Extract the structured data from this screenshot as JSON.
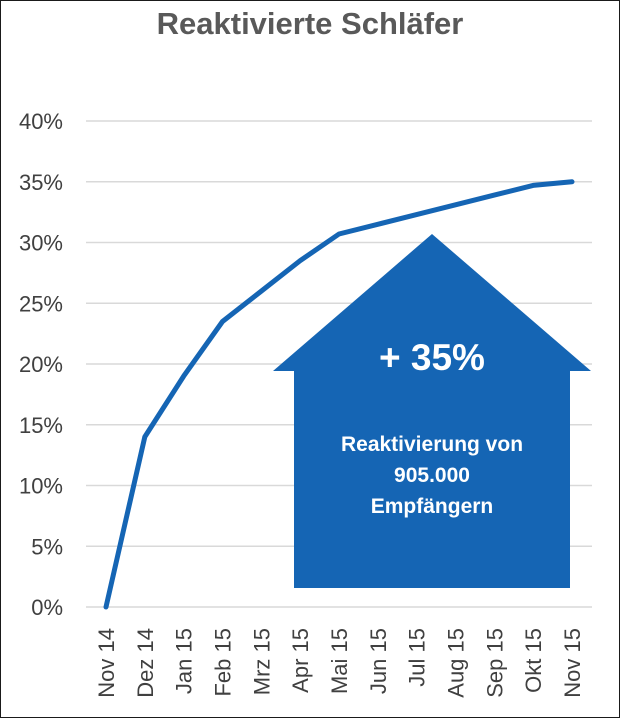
{
  "chart_data": {
    "type": "line",
    "title": "Reaktivierte Schläfer",
    "xlabel": "",
    "ylabel": "",
    "categories": [
      "Nov 14",
      "Dez 14",
      "Jan 15",
      "Feb 15",
      "Mrz 15",
      "Apr 15",
      "Mai 15",
      "Jun 15",
      "Jul 15",
      "Aug 15",
      "Sep 15",
      "Okt 15",
      "Nov 15"
    ],
    "y_ticks": [
      "0%",
      "5%",
      "10%",
      "15%",
      "20%",
      "25%",
      "30%",
      "35%",
      "40%"
    ],
    "ylim": [
      0,
      40
    ],
    "grid": true,
    "series": [
      {
        "values": [
          0,
          14,
          19,
          23.5,
          26,
          28.5,
          30.7,
          31.5,
          32.3,
          33.1,
          33.9,
          34.7,
          35
        ]
      }
    ],
    "line_color": "#1565b4",
    "annotation": {
      "headline": "+ 35%",
      "lines": [
        "Reaktivierung von",
        "905.000",
        "Empfängern"
      ],
      "color": "#1565b4"
    }
  }
}
